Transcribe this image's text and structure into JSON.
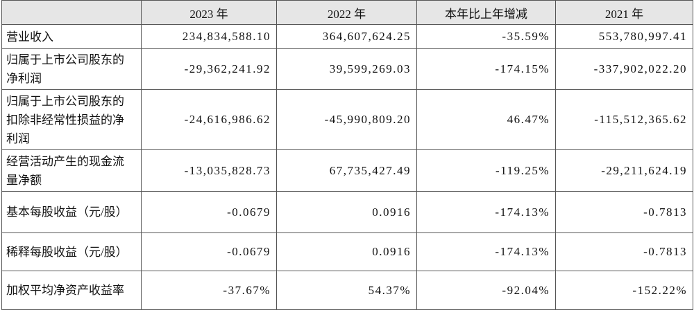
{
  "table": {
    "header": [
      "",
      "2023 年",
      "2022 年",
      "本年比上年增减",
      "2021 年"
    ],
    "rows": [
      [
        "营业收入",
        "234,834,588.10",
        "364,607,624.25",
        "-35.59%",
        "553,780,997.41"
      ],
      [
        "归属于上市公司股东的净利润",
        "-29,362,241.92",
        "39,599,269.03",
        "-174.15%",
        "-337,902,022.20"
      ],
      [
        "归属于上市公司股东的扣除非经常性损益的净利润",
        "-24,616,986.62",
        "-45,990,809.20",
        "46.47%",
        "-115,512,365.62"
      ],
      [
        "经营活动产生的现金流量净额",
        "-13,035,828.73",
        "67,735,427.49",
        "-119.25%",
        "-29,211,624.19"
      ],
      [
        "基本每股收益（元/股）",
        "-0.0679",
        "0.0916",
        "-174.13%",
        "-0.7813"
      ],
      [
        "稀释每股收益（元/股）",
        "-0.0679",
        "0.0916",
        "-174.13%",
        "-0.7813"
      ],
      [
        "加权平均净资产收益率",
        "-37.67%",
        "54.37%",
        "-92.04%",
        "-152.22%"
      ]
    ]
  }
}
